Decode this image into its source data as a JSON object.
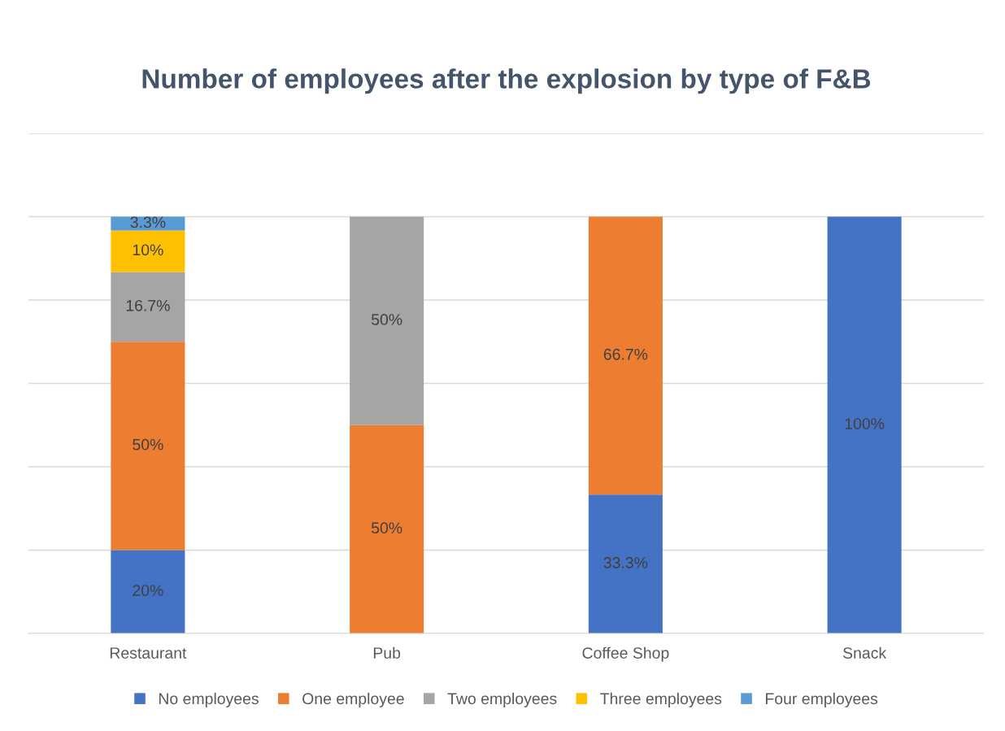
{
  "chart_data": {
    "type": "bar",
    "stacked": true,
    "title": "Number of employees after the explosion by type of F&B",
    "categories": [
      "Restaurant",
      "Pub",
      "Coffee Shop",
      "Snack"
    ],
    "series": [
      {
        "name": "No employees",
        "color": "#4472c4",
        "values": [
          20,
          null,
          33.3,
          100
        ],
        "value_labels": [
          "20%",
          null,
          "33.3%",
          "100%"
        ]
      },
      {
        "name": "One employee",
        "color": "#ed7d31",
        "values": [
          50,
          50,
          66.7,
          null
        ],
        "value_labels": [
          "50%",
          "50%",
          "66.7%",
          null
        ]
      },
      {
        "name": "Two employees",
        "color": "#a5a5a5",
        "values": [
          16.7,
          50,
          null,
          null
        ],
        "value_labels": [
          "16.7%",
          "50%",
          null,
          null
        ]
      },
      {
        "name": "Three employees",
        "color": "#ffc000",
        "values": [
          10,
          null,
          null,
          null
        ],
        "value_labels": [
          "10%",
          null,
          null,
          null
        ]
      },
      {
        "name": "Four employees",
        "color": "#5b9bd5",
        "values": [
          3.3,
          null,
          null,
          null
        ],
        "value_labels": [
          "3.3%",
          null,
          null,
          null
        ]
      }
    ],
    "ylim": [
      0,
      120
    ],
    "yticks": [
      {
        "value": 0,
        "label": null
      },
      {
        "value": 20,
        "label": null
      },
      {
        "value": 40,
        "label": null
      },
      {
        "value": 60,
        "label": null
      },
      {
        "value": 80,
        "label": null
      },
      {
        "value": 100,
        "label": null
      },
      {
        "value": 120,
        "label": null
      }
    ],
    "tick_labels": "x",
    "grid": "y",
    "legend": "bottom"
  }
}
